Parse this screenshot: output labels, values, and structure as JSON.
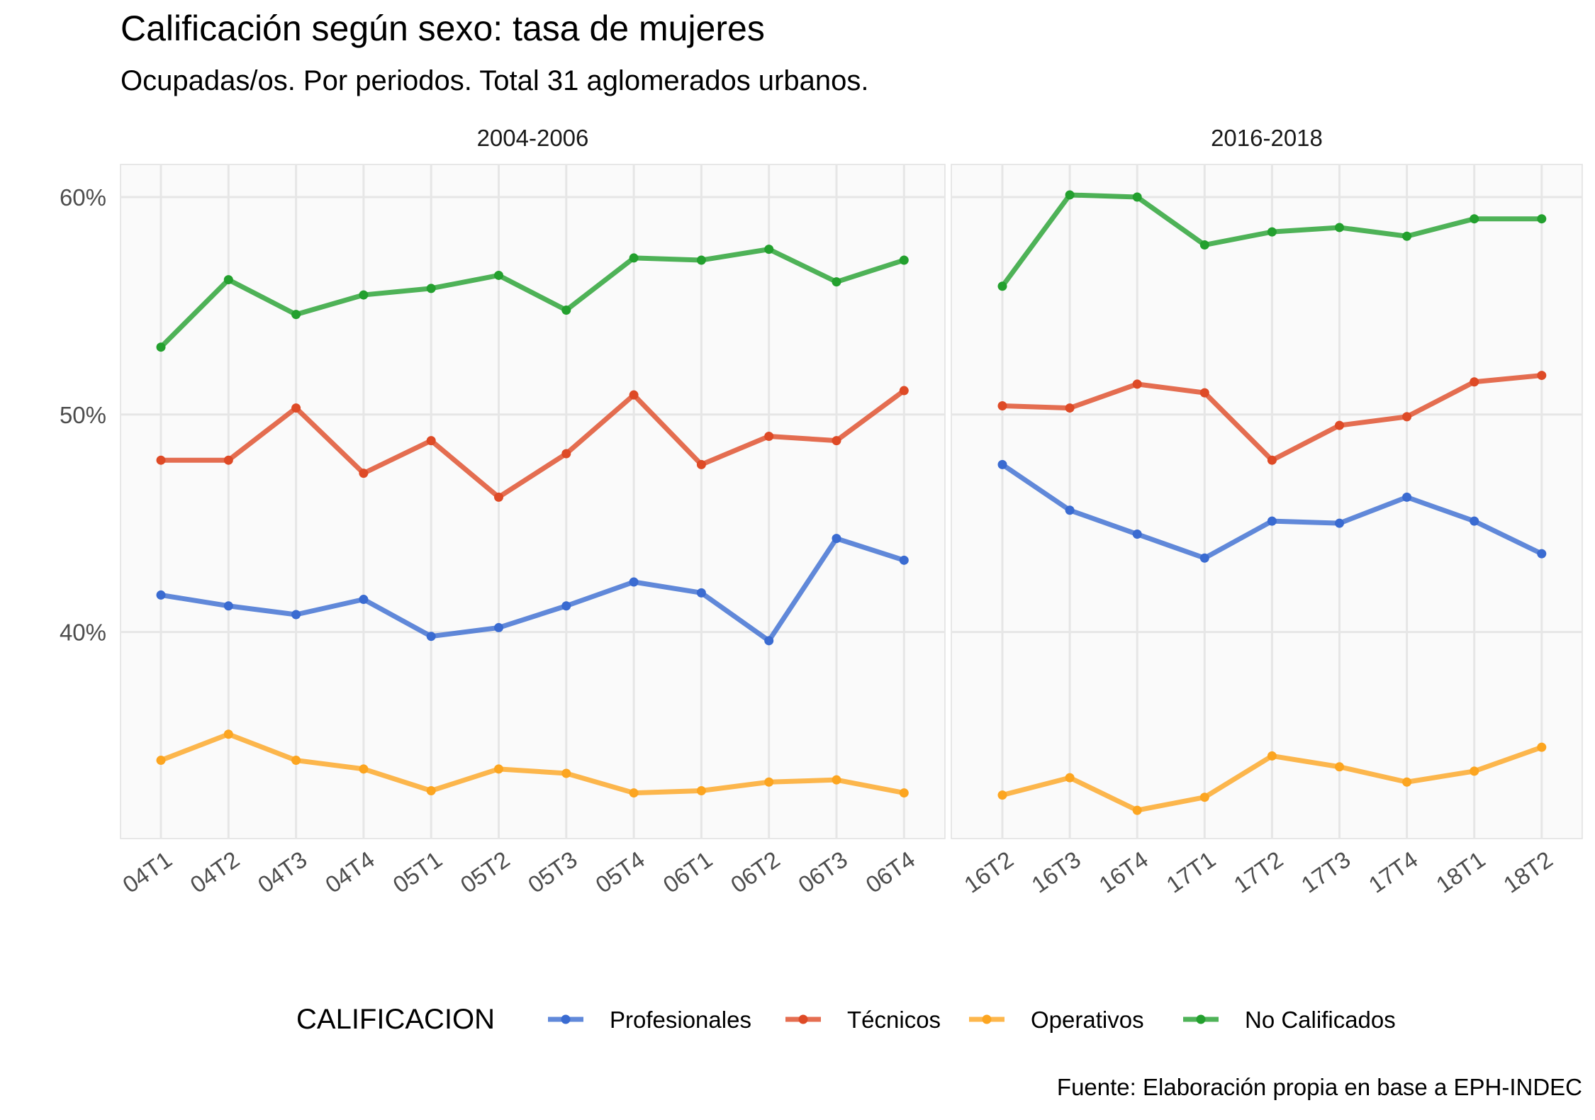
{
  "chart_data": {
    "type": "line",
    "title": "Calificación según sexo: tasa de mujeres",
    "subtitle": "Ocupadas/os. Por periodos. Total 31 aglomerados urbanos.",
    "caption": "Fuente: Elaboración propia en base a EPH-INDEC",
    "ylim": [
      0.305,
      0.615
    ],
    "yticks": [
      0.4,
      0.5,
      0.6
    ],
    "ytick_labels": [
      "40%",
      "50%",
      "60%"
    ],
    "grid": true,
    "legend": {
      "title": "CALIFICACION",
      "position": "bottom",
      "entries": [
        "Profesionales",
        "Técnicos",
        "Operativos",
        "No Calificados"
      ]
    },
    "colors": {
      "Profesionales": "#3a6bd1",
      "Técnicos": "#de4a26",
      "Operativos": "#fca520",
      "No Calificados": "#23a02e",
      "panel_bg": "#fafafa",
      "grid": "#e6e6e6"
    },
    "panels": [
      {
        "title": "2004-2006",
        "x": [
          "04T1",
          "04T2",
          "04T3",
          "04T4",
          "05T1",
          "05T2",
          "05T3",
          "05T4",
          "06T1",
          "06T2",
          "06T3",
          "06T4"
        ],
        "series": [
          {
            "name": "Profesionales",
            "values": [
              0.417,
              0.412,
              0.408,
              0.415,
              0.398,
              0.402,
              0.412,
              0.423,
              0.418,
              0.396,
              0.443,
              0.433
            ]
          },
          {
            "name": "Técnicos",
            "values": [
              0.479,
              0.479,
              0.503,
              0.473,
              0.488,
              0.462,
              0.482,
              0.509,
              0.477,
              0.49,
              0.488,
              0.511
            ]
          },
          {
            "name": "Operativos",
            "values": [
              0.341,
              0.353,
              0.341,
              0.337,
              0.327,
              0.337,
              0.335,
              0.326,
              0.327,
              0.331,
              0.332,
              0.326
            ]
          },
          {
            "name": "No Calificados",
            "values": [
              0.531,
              0.562,
              0.546,
              0.555,
              0.558,
              0.564,
              0.548,
              0.572,
              0.571,
              0.576,
              0.561,
              0.571
            ]
          }
        ]
      },
      {
        "title": "2016-2018",
        "x": [
          "16T2",
          "16T3",
          "16T4",
          "17T1",
          "17T2",
          "17T3",
          "17T4",
          "18T1",
          "18T2"
        ],
        "series": [
          {
            "name": "Profesionales",
            "values": [
              0.477,
              0.456,
              0.445,
              0.434,
              0.451,
              0.45,
              0.462,
              0.451,
              0.436
            ]
          },
          {
            "name": "Técnicos",
            "values": [
              0.504,
              0.503,
              0.514,
              0.51,
              0.479,
              0.495,
              0.499,
              0.515,
              0.518
            ]
          },
          {
            "name": "Operativos",
            "values": [
              0.325,
              0.333,
              0.318,
              0.324,
              0.343,
              0.338,
              0.331,
              0.336,
              0.347
            ]
          },
          {
            "name": "No Calificados",
            "values": [
              0.559,
              0.601,
              0.6,
              0.578,
              0.584,
              0.586,
              0.582,
              0.59,
              0.59
            ]
          }
        ]
      }
    ]
  }
}
